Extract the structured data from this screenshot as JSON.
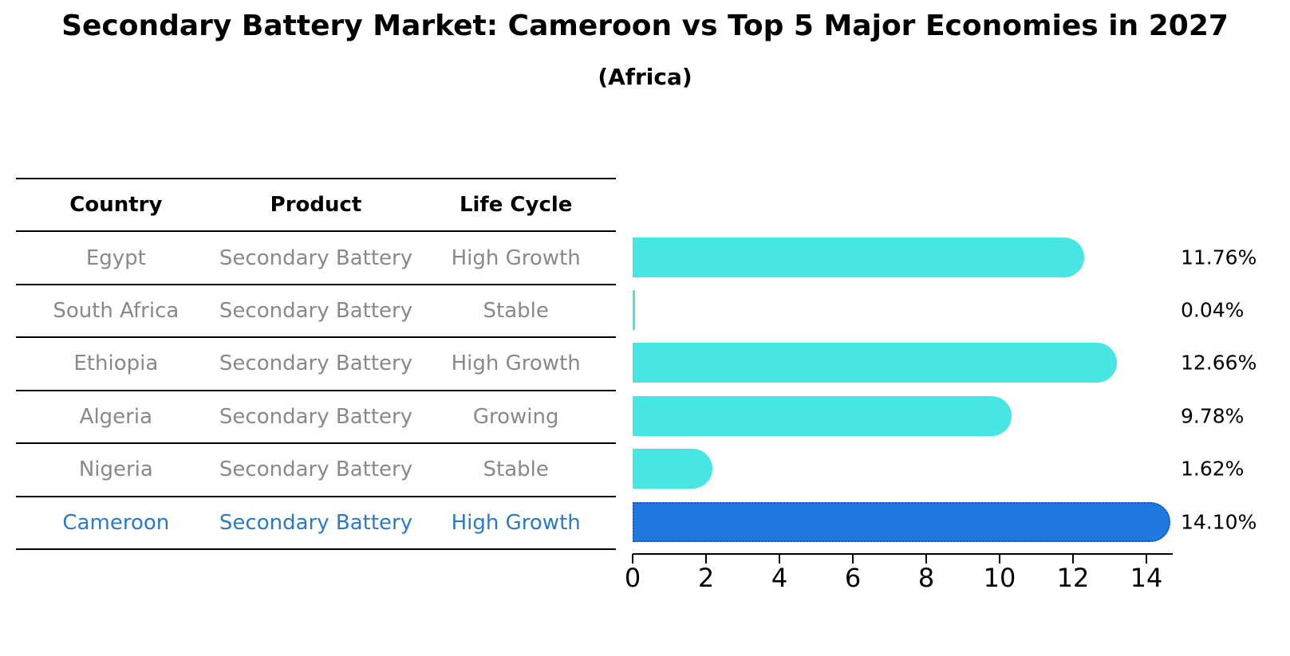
{
  "title": "Secondary Battery Market: Cameroon vs Top 5 Major Economies in 2027",
  "subtitle": "(Africa)",
  "table": {
    "headers": [
      "Country",
      "Product",
      "Life Cycle"
    ],
    "rows": [
      {
        "country": "Egypt",
        "product": "Secondary Battery",
        "life_cycle": "High Growth",
        "highlight": false
      },
      {
        "country": "South Africa",
        "product": "Secondary Battery",
        "life_cycle": "Stable",
        "highlight": false
      },
      {
        "country": "Ethiopia",
        "product": "Secondary Battery",
        "life_cycle": "High Growth",
        "highlight": false
      },
      {
        "country": "Algeria",
        "product": "Secondary Battery",
        "life_cycle": "Growing",
        "highlight": false
      },
      {
        "country": "Nigeria",
        "product": "Secondary Battery",
        "life_cycle": "Stable",
        "highlight": false
      },
      {
        "country": "Cameroon",
        "product": "Secondary Battery",
        "life_cycle": "High Growth",
        "highlight": true
      }
    ]
  },
  "chart_data": {
    "type": "bar",
    "orientation": "horizontal",
    "title": "Secondary Battery Market: Cameroon vs Top 5 Major Economies in 2027 (Africa)",
    "categories": [
      "Egypt",
      "South Africa",
      "Ethiopia",
      "Algeria",
      "Nigeria",
      "Cameroon"
    ],
    "values": [
      11.76,
      0.04,
      12.66,
      9.78,
      1.62,
      14.1
    ],
    "value_labels": [
      "11.76%",
      "0.04%",
      "12.66%",
      "9.78%",
      "1.62%",
      "14.10%"
    ],
    "highlight_category": "Cameroon",
    "xlabel": "",
    "ylabel": "",
    "xlim": [
      0,
      14.7
    ],
    "xticks": [
      0,
      2,
      4,
      6,
      8,
      10,
      12,
      14
    ],
    "grid": false,
    "legend": "none",
    "colors": {
      "default_bar": "#48e6e3",
      "highlight_bar": "#2078e1",
      "highlight_border": "#1557c8",
      "highlight_text": "#2b7ac8",
      "row_text": "#898989",
      "header_text": "#000000"
    }
  }
}
